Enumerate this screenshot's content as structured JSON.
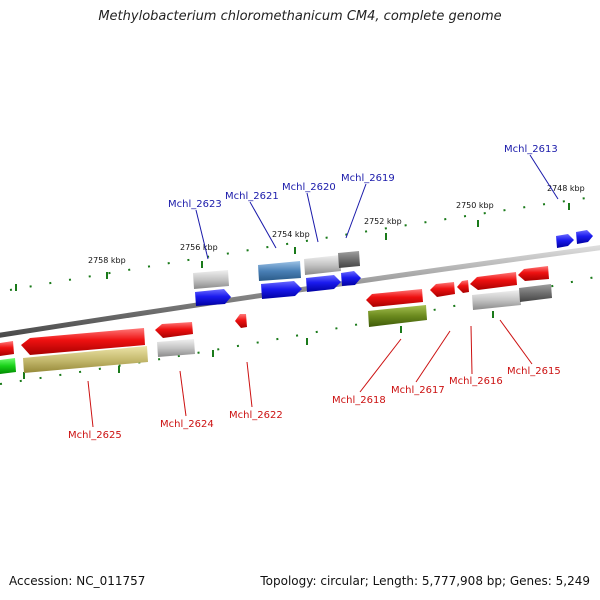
{
  "title": "Methylobacterium chloromethanicum CM4, complete genome",
  "footer": {
    "accession": "Accession: NC_011757",
    "summary": "Topology: circular; Length: 5,777,908 bp; Genes: 5,249"
  },
  "scale_labels": [
    "2758 kbp",
    "2756 kbp",
    "2754 kbp",
    "2752 kbp",
    "2750 kbp",
    "2748 kbp"
  ],
  "gene_labels_forward": [
    "Mchl_2623",
    "Mchl_2621",
    "Mchl_2620",
    "Mchl_2619",
    "Mchl_2613"
  ],
  "gene_labels_reverse": [
    "Mchl_2625",
    "Mchl_2624",
    "Mchl_2622",
    "Mchl_2618",
    "Mchl_2617",
    "Mchl_2616",
    "Mchl_2615"
  ],
  "colors": {
    "backbone": "#8a8a8a",
    "forward_gene": "#1a1aee",
    "reverse_gene": "#ee1111",
    "tick": "#1a7a1a",
    "label_forward": "#1a1aaa",
    "label_reverse": "#cc1111"
  }
}
